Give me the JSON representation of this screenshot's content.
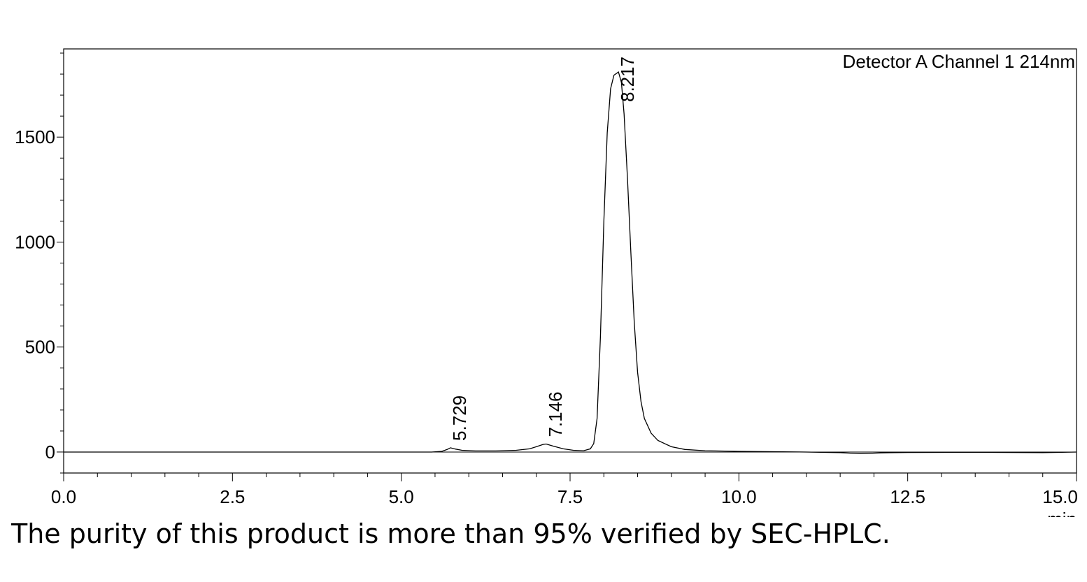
{
  "chart_data": {
    "type": "line",
    "title": "",
    "legend": "Detector A Channel 1 214nm",
    "legend_position": "top-right",
    "xlabel": "min",
    "ylabel": "",
    "xlim": [
      0.0,
      15.0
    ],
    "ylim": [
      -100,
      1920
    ],
    "grid": false,
    "x_ticks": [
      "0.0",
      "2.5",
      "5.0",
      "7.5",
      "10.0",
      "12.5",
      "15.0"
    ],
    "y_ticks": [
      "0",
      "500",
      "1000",
      "1500"
    ],
    "peaks": [
      {
        "label": "5.729",
        "x": 5.729,
        "y": 20
      },
      {
        "label": "7.146",
        "x": 7.146,
        "y": 38
      },
      {
        "label": "8.217",
        "x": 8.217,
        "y": 1810
      }
    ],
    "series": [
      {
        "x": [
          0.0,
          5.0,
          5.45,
          5.6,
          5.68,
          5.729,
          5.8,
          5.9,
          6.1,
          6.4,
          6.7,
          6.9,
          7.0,
          7.1,
          7.146,
          7.25,
          7.4,
          7.55,
          7.7,
          7.8,
          7.85,
          7.9,
          7.95,
          8.0,
          8.05,
          8.1,
          8.15,
          8.217,
          8.26,
          8.3,
          8.35,
          8.4,
          8.45,
          8.5,
          8.55,
          8.6,
          8.7,
          8.8,
          9.0,
          9.2,
          9.5,
          10.0,
          11.0,
          11.5,
          11.8,
          12.1,
          12.5,
          13.5,
          14.5,
          15.0
        ],
        "y": [
          0,
          0,
          0,
          3,
          12,
          20,
          14,
          8,
          5,
          5,
          8,
          15,
          25,
          36,
          38,
          28,
          15,
          8,
          6,
          15,
          40,
          160,
          550,
          1100,
          1520,
          1730,
          1795,
          1810,
          1760,
          1610,
          1300,
          950,
          620,
          380,
          240,
          160,
          90,
          55,
          25,
          12,
          6,
          3,
          0,
          -3,
          -8,
          -4,
          -2,
          -1,
          -3,
          0
        ]
      }
    ]
  },
  "caption": "The purity of this product is more than 95% verified by SEC-HPLC."
}
